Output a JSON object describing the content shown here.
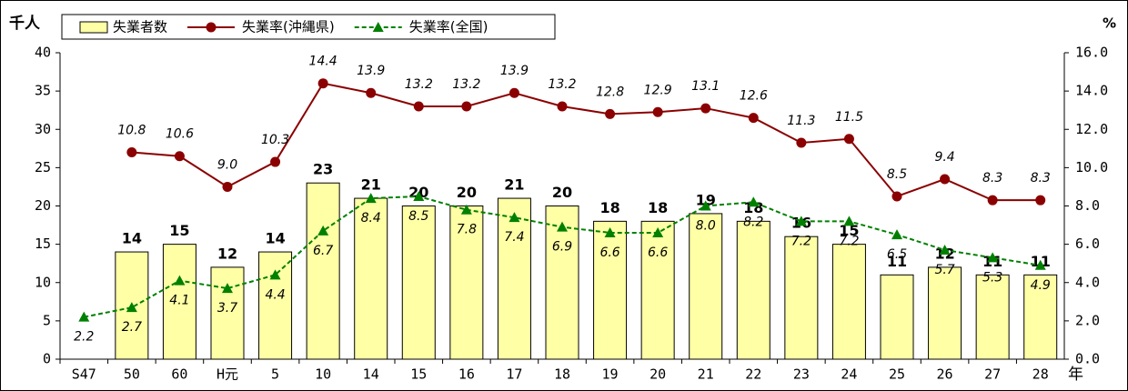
{
  "chart_data": {
    "type": "combo",
    "ylabel": "千人",
    "y2label": "%",
    "xlabel": "年",
    "categories": [
      "S47",
      "50",
      "60",
      "H元",
      "5",
      "10",
      "14",
      "15",
      "16",
      "17",
      "18",
      "19",
      "20",
      "21",
      "22",
      "23",
      "24",
      "25",
      "26",
      "27",
      "28"
    ],
    "series": [
      {
        "name": "失業者数",
        "type": "bar",
        "color": "#ffffa6",
        "values": [
          null,
          14,
          15,
          12,
          14,
          23,
          21,
          20,
          20,
          21,
          20,
          18,
          18,
          19,
          18,
          16,
          15,
          11,
          12,
          11,
          11
        ]
      },
      {
        "name": "失業率(沖縄県)",
        "type": "line",
        "axis": "y2",
        "color": "#8b0000",
        "marker": "circle",
        "dashed": false,
        "values": [
          null,
          10.8,
          10.6,
          9.0,
          10.3,
          14.4,
          13.9,
          13.2,
          13.2,
          13.9,
          13.2,
          12.8,
          12.9,
          13.1,
          12.6,
          11.3,
          11.5,
          8.5,
          9.4,
          8.3,
          8.3
        ],
        "value_labels": [
          null,
          "10.8",
          "10.6",
          "9.0",
          "10.3",
          "14.4",
          "13.9",
          "13.2",
          "13.2",
          "13.9",
          "13.2",
          "12.8",
          "12.9",
          "13.1",
          "12.6",
          "11.3",
          "11.5",
          "8.5",
          "9.4",
          "8.3",
          "8.3"
        ]
      },
      {
        "name": "失業率(全国)",
        "type": "line",
        "axis": "y2",
        "color": "#008000",
        "marker": "triangle",
        "dashed": true,
        "values": [
          2.2,
          2.7,
          4.1,
          3.7,
          4.4,
          6.7,
          8.4,
          8.5,
          7.8,
          7.4,
          6.9,
          6.6,
          6.6,
          8.0,
          8.2,
          7.2,
          7.2,
          6.5,
          5.7,
          5.3,
          4.9
        ],
        "value_labels": [
          "2.2",
          "2.7",
          "4.1",
          "3.7",
          "4.4",
          "6.7",
          "8.4",
          "8.5",
          "7.8",
          "7.4",
          "6.9",
          "6.6",
          "6.6",
          "8.0",
          "8.2",
          "7.2",
          "7.2",
          "6.5",
          "5.7",
          "5.3",
          "4.9"
        ]
      }
    ],
    "ylim": [
      0,
      40
    ],
    "yticks": [
      0,
      5,
      10,
      15,
      20,
      25,
      30,
      35,
      40
    ],
    "y2lim": [
      0,
      16
    ],
    "y2ticks": [
      {
        "value": 0,
        "label": "0.0"
      },
      {
        "value": 2,
        "label": "2.0"
      },
      {
        "value": 4,
        "label": "4.0"
      },
      {
        "value": 6,
        "label": "6.0"
      },
      {
        "value": 8,
        "label": "8.0"
      },
      {
        "value": 10,
        "label": "10.0"
      },
      {
        "value": 12,
        "label": "12.0"
      },
      {
        "value": 14,
        "label": "14.0"
      },
      {
        "value": 16,
        "label": "16.0"
      }
    ]
  }
}
